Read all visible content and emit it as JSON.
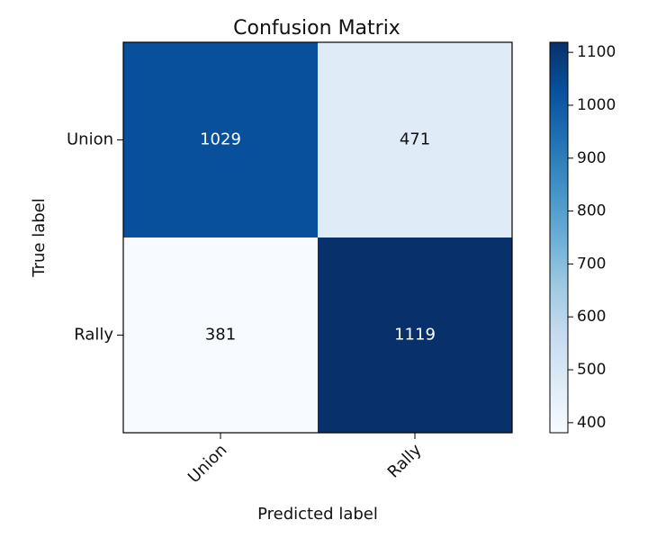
{
  "chart_data": {
    "type": "heatmap",
    "title": "Confusion Matrix",
    "xlabel": "Predicted label",
    "ylabel": "True label",
    "x_categories": [
      "Union",
      "Rally"
    ],
    "y_categories": [
      "Union",
      "Rally"
    ],
    "matrix": [
      [
        1029,
        471
      ],
      [
        381,
        1119
      ]
    ],
    "colormap": "Blues",
    "color_range": [
      381,
      1119
    ],
    "colorbar_ticks": [
      400,
      500,
      600,
      700,
      800,
      900,
      1000,
      1100
    ],
    "colorbar_tick_labels": [
      "400",
      "500",
      "600",
      "700",
      "800",
      "900",
      "1000",
      "1100"
    ],
    "grid": false,
    "legend": "colorbar-right"
  }
}
